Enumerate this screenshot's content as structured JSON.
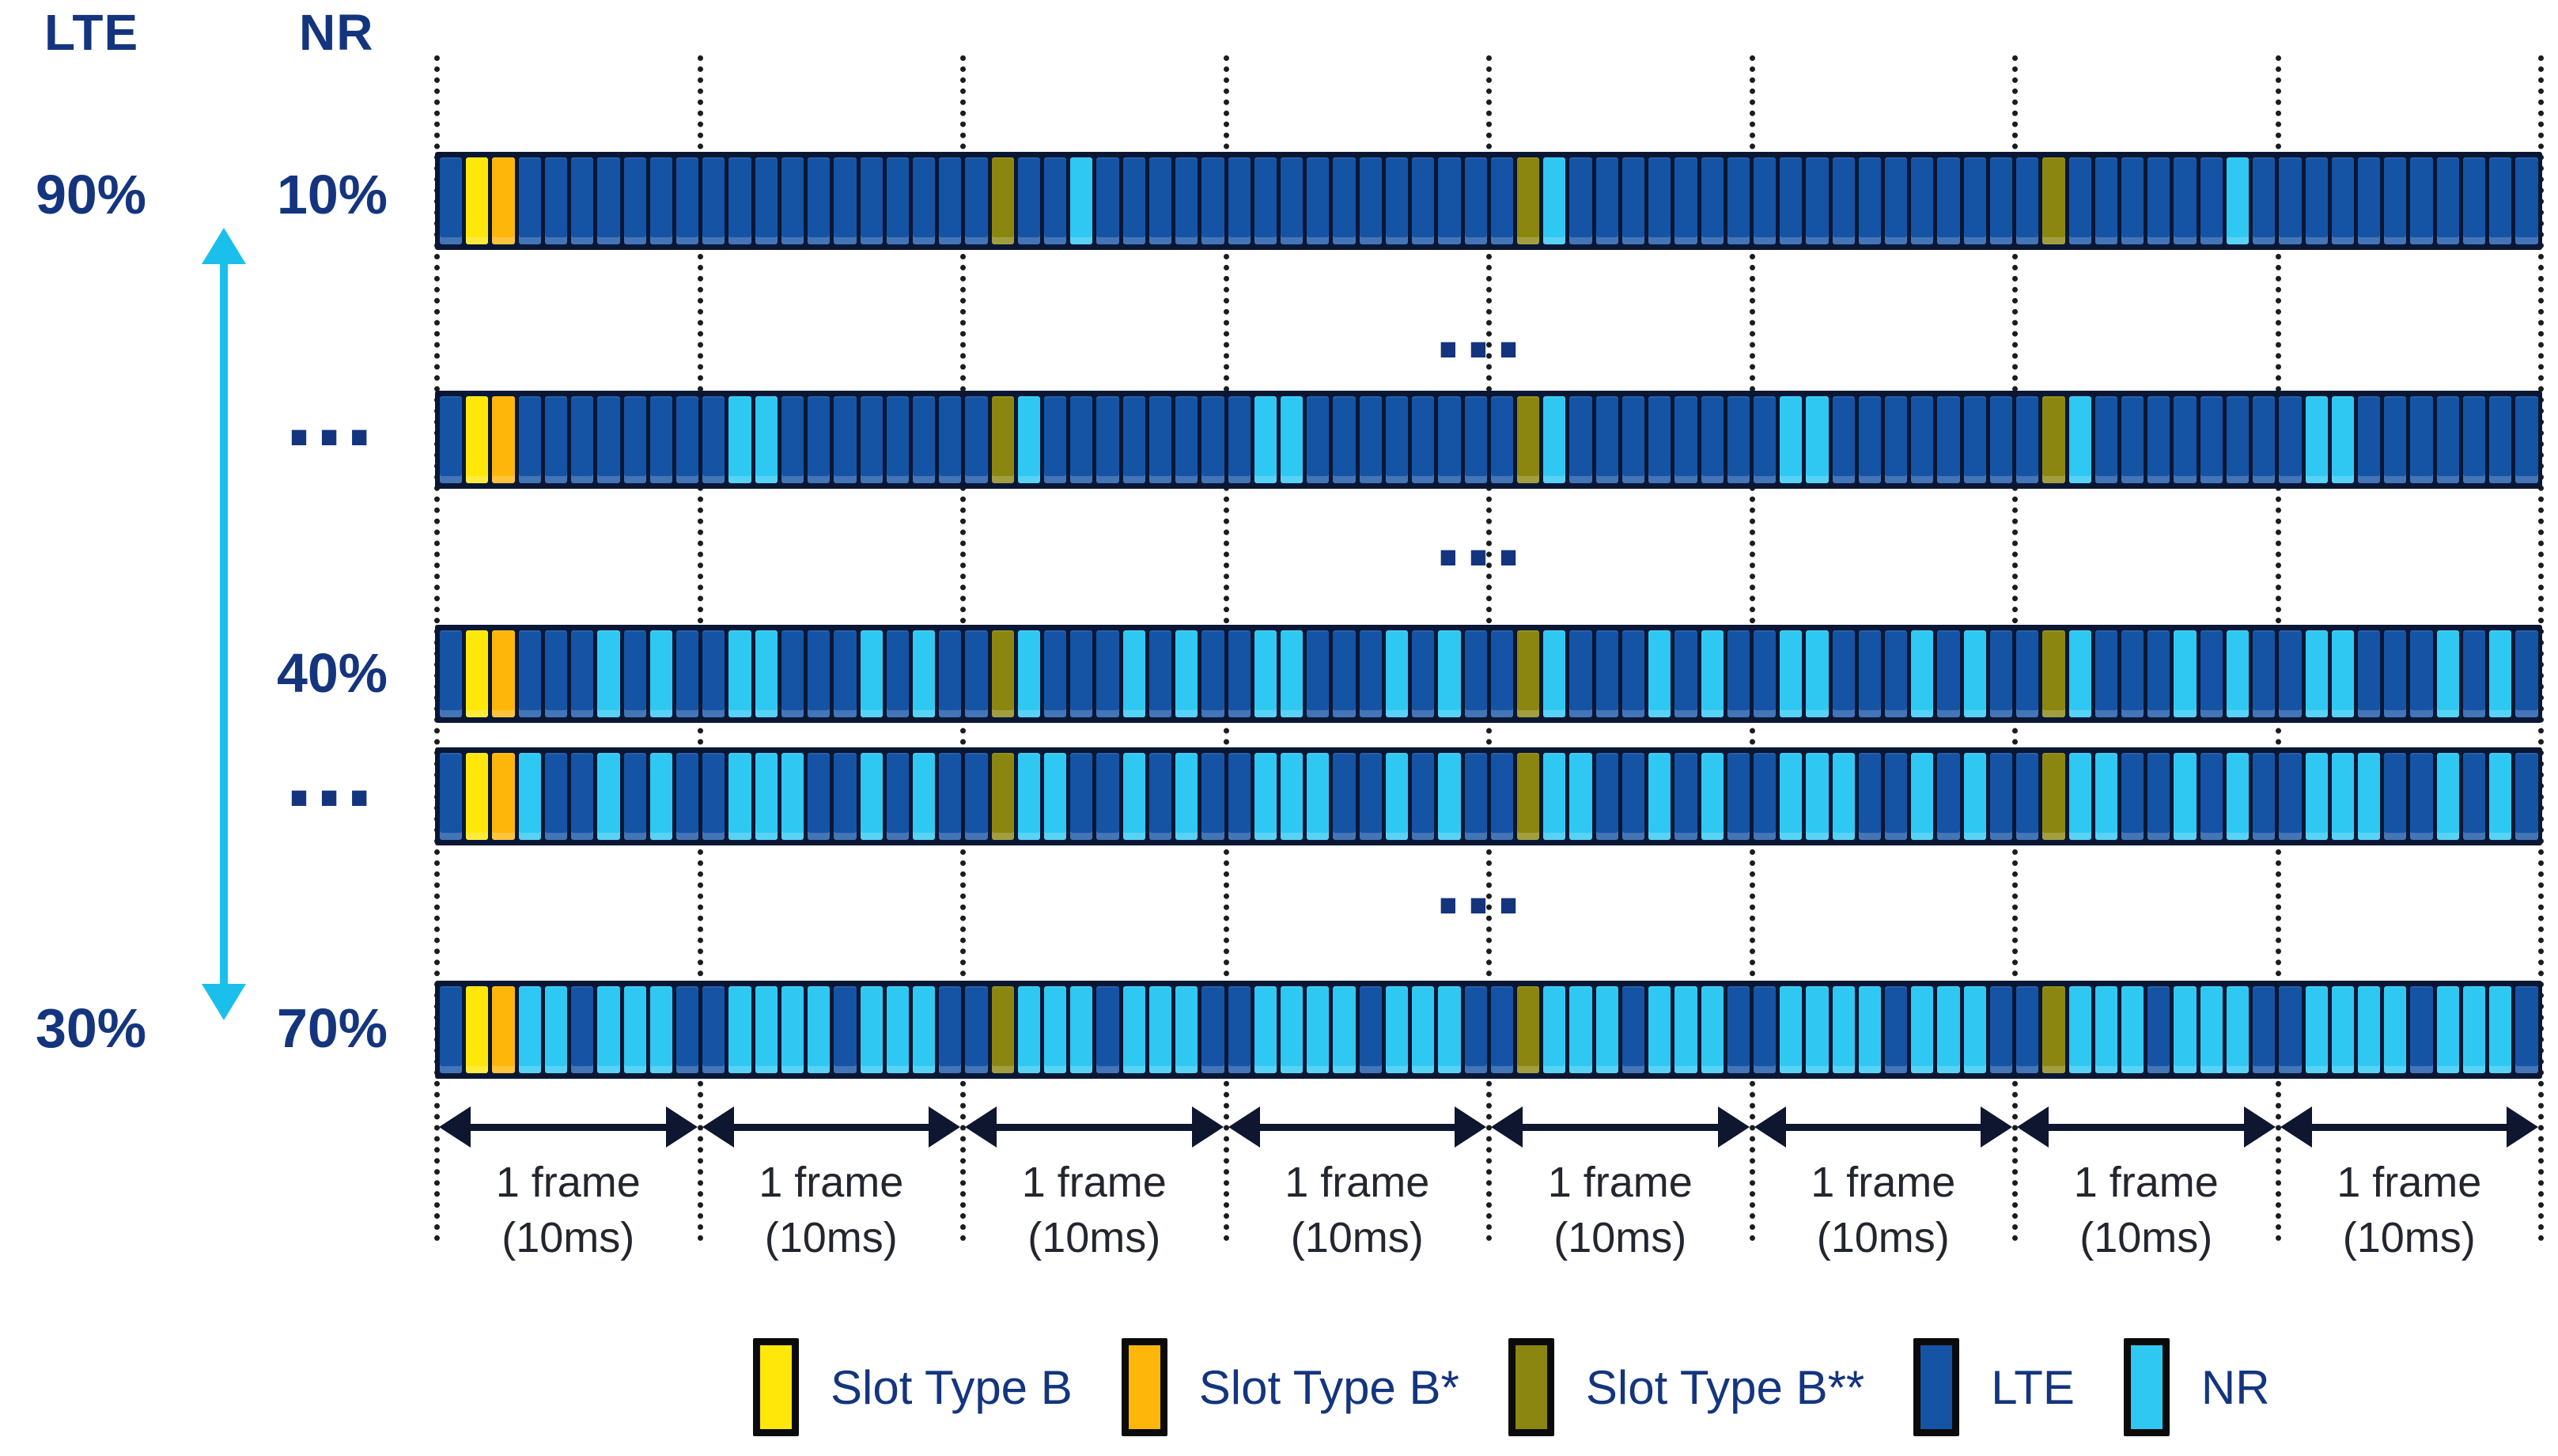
{
  "title_columns": {
    "lte": "LTE",
    "nr": "NR"
  },
  "share_axis": {
    "lte_top": "90%",
    "lte_bottom": "30%",
    "arrow_color": "#1bbfec"
  },
  "rows": [
    {
      "lte_label": "90%",
      "nr_label": "10%",
      "pattern": "BYOBBBBBBB BBBBBBBBBB BGBBNBBBBB BBBBBBBBBB BGNBBBBBBB BBBBBBBBBB BGBBBBBBNB BBBBBBBBBB"
    },
    {
      "lte_label": "",
      "nr_label": "...",
      "pattern": "BYOBBBBBBB BNNBBBBBBB BGNBBBBBBB BNNBBBBBBB BGNBBBBBBB BNNBBBBBBB BGNBBBBBBB BNNBBBBBBB"
    },
    {
      "lte_label": "",
      "nr_label": "40%",
      "pattern": "BYOBBBNBNB BNNBBBNBNB BGNBBBNBNB BNNBBBNBNB BGNBBBNBNB BNNBBBNBNB BGNBBBNBNB BNNBBBNBNB"
    },
    {
      "lte_label": "",
      "nr_label": "...",
      "pattern": "BYONBBNBNB BNNNBBNBNB BGNNBBNBNB BNNNBBNBNB BGNNBBNBNB BNNNBBNBNB BGNNBBNBNB BNNNBBNBNB"
    },
    {
      "lte_label": "30%",
      "nr_label": "70%",
      "pattern": "BYONNBNNNB BNNNNBNNNB BGNNNBNNNB BNNNNBNNNB BGNNNBNNNB BNNNNBNNNB BGNNNBNNNB BNNNNBNNNB"
    }
  ],
  "gap_ellipsis": "...",
  "frames": {
    "count": 8,
    "slots_per_frame": 10,
    "label_line1": "1 frame",
    "label_line2": "(10ms)"
  },
  "legend": [
    {
      "key": "Y",
      "label": "Slot Type B",
      "color": "#ffe70a"
    },
    {
      "key": "O",
      "label": "Slot Type B*",
      "color": "#ffb60a"
    },
    {
      "key": "G",
      "label": "Slot Type B**",
      "color": "#8b860f"
    },
    {
      "key": "B",
      "label": "LTE",
      "color": "#1553a5"
    },
    {
      "key": "N",
      "label": "NR",
      "color": "#2fc8f3"
    }
  ],
  "colors": {
    "slot_yellow": "#ffe70a",
    "slot_orange": "#ffb60a",
    "slot_olive": "#8b860f",
    "slot_lte": "#1553a5",
    "slot_nr": "#2fc8f3",
    "bar_frame": "#0a1734",
    "label_navy": "#14357e",
    "grid_dots": "#1c1c1c",
    "frame_arrow": "#0e1630",
    "range_arrow": "#1bbfec"
  }
}
